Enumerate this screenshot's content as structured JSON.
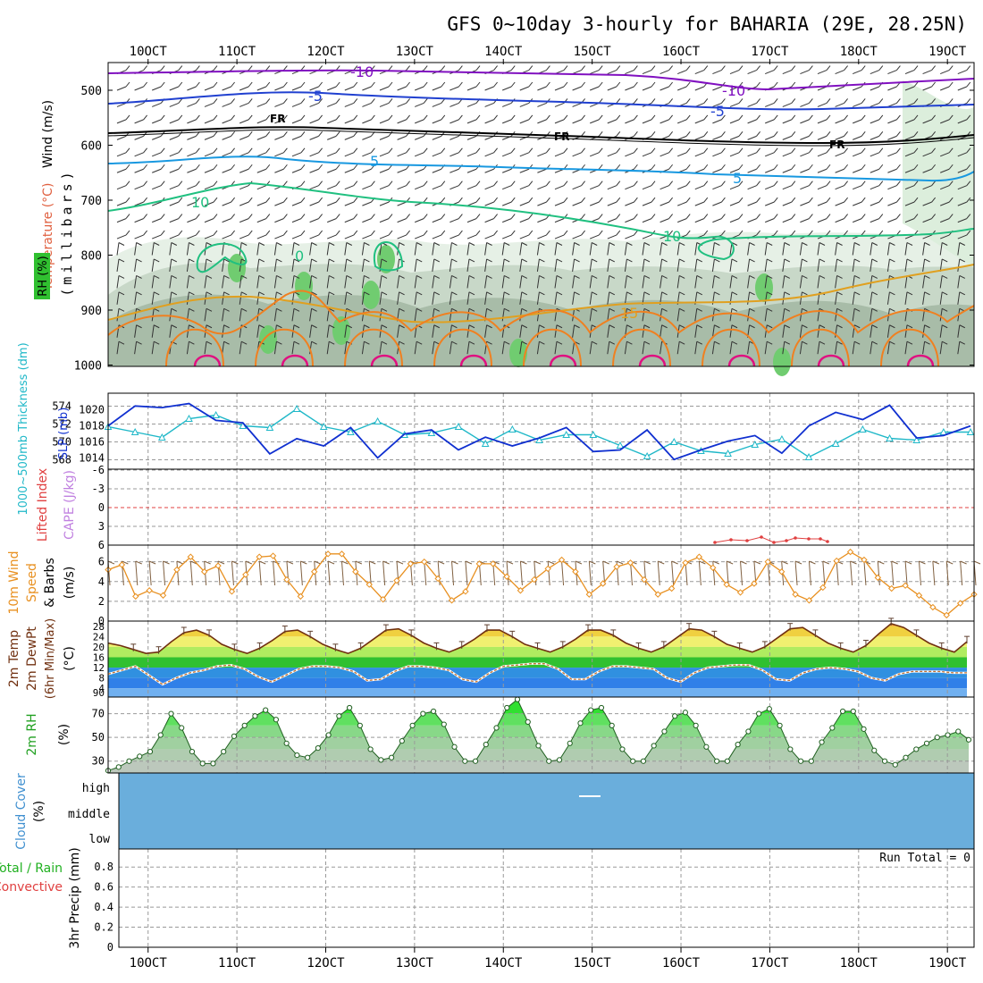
{
  "title": "GFS 0~10day 3-hourly for BAHARIA (29E, 28.25N)",
  "chart_data": {
    "type": "meteogram",
    "time_axis": {
      "labels": [
        "10OCT",
        "11OCT",
        "12OCT",
        "13OCT",
        "14OCT",
        "15OCT",
        "16OCT",
        "17OCT",
        "18OCT",
        "19OCT"
      ],
      "start_day": 9.55,
      "end_day": 19.3
    },
    "upper_air": {
      "label_wind": "Wind (m/s)",
      "label_temperature": "Temperature (°C)",
      "label_rh": "RH (%)",
      "label_units": "(millibars)",
      "y_ticks": [
        "500",
        "600",
        "700",
        "800",
        "900",
        "1000"
      ],
      "isotherm_labels": {
        "m10": "-10",
        "m5": "-5",
        "fr": "FR",
        "p5": "5",
        "p10": "10",
        "p15": "15",
        "zero": "0"
      }
    },
    "pressure_thickness": {
      "label_thickness": "1000~500mb Thickness (dm)",
      "label_slp": "SLP (mb)",
      "thickness_ticks": [
        "568",
        "570",
        "572",
        "574"
      ],
      "slp_ticks": [
        "1014",
        "1016",
        "1018",
        "1020"
      ],
      "slp_series": [
        1018.0,
        1020.5,
        1020.3,
        1020.8,
        1018.7,
        1018.4,
        1014.5,
        1016.4,
        1015.5,
        1017.8,
        1014.0,
        1017.0,
        1017.5,
        1015.0,
        1016.6,
        1015.5,
        1016.5,
        1017.8,
        1014.8,
        1015.0,
        1017.5,
        1013.8,
        1015.0,
        1016.1,
        1016.8,
        1014.6,
        1018.0,
        1019.7,
        1018.8,
        1020.6,
        1016.5,
        1016.8,
        1018.0
      ],
      "thickness_series": [
        571.7,
        571.1,
        570.5,
        572.6,
        573.0,
        571.8,
        571.6,
        573.7,
        571.7,
        571.1,
        572.3,
        570.8,
        571.0,
        571.7,
        569.8,
        571.4,
        570.2,
        570.8,
        570.8,
        569.6,
        568.4,
        570.0,
        569.0,
        568.7,
        569.7,
        570.3,
        568.3,
        569.8,
        571.4,
        570.4,
        570.2,
        571.1,
        571.1
      ]
    },
    "stability": {
      "label_lifted_index": "Lifted Index",
      "label_cape": "CAPE (J/kg)",
      "y_ticks": [
        "-6",
        "-3",
        "0",
        "3",
        "6"
      ]
    },
    "wind10m": {
      "label": "10m Wind Speed & Barbs (m/s)",
      "label_line1": "10m Wind",
      "label_line2": "Speed",
      "label_line3": "& Barbs",
      "label_units": "(m/s)",
      "y_ticks": [
        "0",
        "2",
        "4",
        "6"
      ],
      "speed_series": [
        5.2,
        5.7,
        2.5,
        3.1,
        2.6,
        5.2,
        6.5,
        5.0,
        5.6,
        3.0,
        4.7,
        6.5,
        6.6,
        4.2,
        2.5,
        5.0,
        6.8,
        6.8,
        5.0,
        3.7,
        2.2,
        4.1,
        5.8,
        6.0,
        4.3,
        2.1,
        3.0,
        5.8,
        5.8,
        4.5,
        3.1,
        4.2,
        5.3,
        6.2,
        5.0,
        2.7,
        3.8,
        5.5,
        5.9,
        4.2,
        2.7,
        3.3,
        5.9,
        6.5,
        5.4,
        3.7,
        2.9,
        3.8,
        6.0,
        5.0,
        2.7,
        2.1,
        3.4,
        6.1,
        7.0,
        6.2,
        4.4,
        3.3,
        3.6,
        2.6,
        1.4,
        0.6,
        1.8,
        2.7
      ]
    },
    "temp2m": {
      "label_line1": "2m Temp",
      "label_line2": "2m DewPt",
      "label_line3": "(6hr Min/Max)",
      "label_units": "(°C)",
      "y_ticks": [
        "4",
        "8",
        "12",
        "16",
        "20",
        "24",
        "28"
      ],
      "y_tick_extra": "90",
      "temp_series": [
        21.5,
        20.5,
        19.0,
        17.5,
        18.0,
        22.0,
        25.5,
        26.5,
        24.5,
        21.0,
        19.0,
        17.5,
        19.5,
        22.5,
        26.0,
        26.5,
        24.0,
        21.0,
        19.0,
        17.5,
        19.5,
        23.0,
        26.5,
        27.0,
        24.5,
        21.5,
        19.5,
        18.0,
        20.0,
        23.0,
        26.5,
        26.5,
        24.0,
        21.0,
        19.5,
        18.0,
        20.0,
        23.0,
        26.5,
        26.5,
        24.5,
        21.5,
        19.5,
        18.0,
        20.0,
        23.5,
        27.0,
        26.5,
        24.0,
        21.0,
        19.5,
        18.0,
        20.0,
        23.5,
        27.0,
        27.5,
        24.5,
        21.5,
        19.5,
        18.0,
        20.5,
        25.0,
        29.0,
        27.5,
        24.5,
        21.5,
        19.5,
        18.0,
        22.0
      ],
      "dewpoint_series": [
        9.5,
        11.0,
        12.5,
        9.0,
        5.5,
        8.0,
        10.0,
        11.0,
        12.5,
        13.0,
        11.5,
        8.5,
        6.5,
        9.0,
        11.5,
        12.5,
        12.5,
        12.0,
        10.5,
        7.0,
        7.5,
        10.5,
        12.5,
        12.5,
        12.0,
        11.0,
        7.5,
        6.5,
        10.0,
        12.5,
        13.0,
        13.5,
        13.5,
        11.5,
        7.5,
        7.5,
        10.5,
        12.5,
        12.5,
        12.0,
        11.5,
        8.0,
        6.5,
        10.0,
        12.0,
        12.5,
        13.0,
        13.0,
        11.0,
        7.5,
        7.0,
        10.0,
        11.5,
        12.0,
        11.5,
        10.5,
        8.0,
        7.0,
        9.5,
        10.5,
        10.5,
        10.5,
        10.0,
        10.0
      ]
    },
    "rh2m": {
      "label": "2m RH",
      "label_units": "(%)",
      "y_ticks": [
        "30",
        "50",
        "70"
      ],
      "series": [
        22,
        25,
        30,
        34,
        38,
        52,
        70,
        58,
        38,
        28,
        28,
        38,
        51,
        60,
        68,
        73,
        65,
        45,
        35,
        33,
        41,
        52,
        68,
        75,
        60,
        40,
        31,
        33,
        47,
        60,
        70,
        72,
        61,
        42,
        30,
        30,
        44,
        58,
        75,
        82,
        63,
        43,
        30,
        31,
        45,
        62,
        73,
        75,
        60,
        40,
        30,
        30,
        43,
        55,
        68,
        71,
        60,
        42,
        30,
        30,
        44,
        55,
        70,
        74,
        60,
        40,
        30,
        30,
        46,
        58,
        72,
        72,
        57,
        39,
        30,
        27,
        33,
        40,
        45,
        50,
        52,
        55,
        48
      ]
    },
    "cloud": {
      "label": "Cloud Cover (%)",
      "label_line1": "Cloud Cover",
      "label_units": "(%)",
      "levels": [
        "high",
        "middle",
        "low"
      ],
      "fill_color": "#6aaedc"
    },
    "precip": {
      "label_total": "Total / Rain",
      "label_convective": "Convective",
      "label_axis": "3hr Precip (mm)",
      "y_ticks": [
        "0",
        "0.2",
        "0.4",
        "0.6",
        "0.8"
      ],
      "run_total": "Run Total = 0"
    },
    "colors": {
      "slp": "#1030d0",
      "thickness": "#20b8c8",
      "wind_speed": "#e89020",
      "barbs": "#806040",
      "temp_line": "#703010",
      "dewpoint": "#c07030",
      "rh_green": "#20c020",
      "isotherm_m10": "#8010c0",
      "isotherm_m5": "#2040d0",
      "isotherm_fr": "#000000",
      "isotherm_p5": "#1898e0",
      "isotherm_p10": "#20c080",
      "isotherm_p15": "#e0a020",
      "isotherm_p20": "#f08020",
      "isotherm_p25": "#e01080"
    }
  }
}
